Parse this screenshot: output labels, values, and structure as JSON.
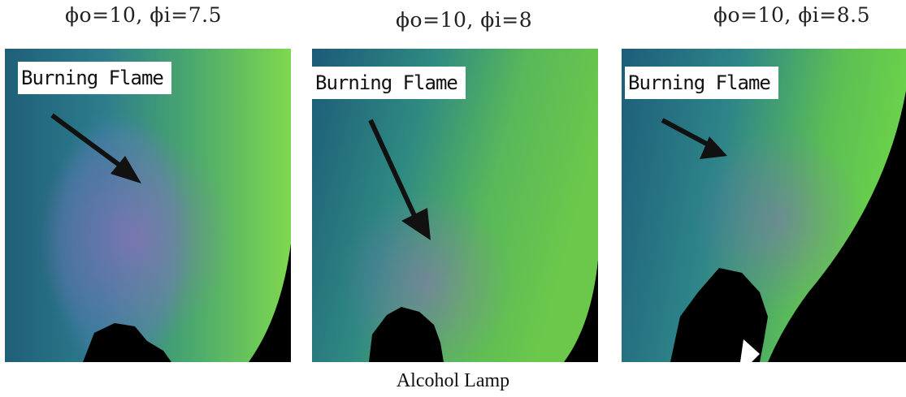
{
  "panels": [
    {
      "caption": "ϕo=10, ϕi=7.5",
      "label": "Burning Flame"
    },
    {
      "caption": "ϕo=10, ϕi=8",
      "label": "Burning Flame"
    },
    {
      "caption": "ϕo=10, ϕi=8.5",
      "label": "Burning Flame"
    }
  ],
  "bottom_caption": "Alcohol Lamp",
  "colors": {
    "teal": "#2a7a86",
    "green": "#6fd35a",
    "violet": "#8a5fb8",
    "black": "#000000"
  }
}
